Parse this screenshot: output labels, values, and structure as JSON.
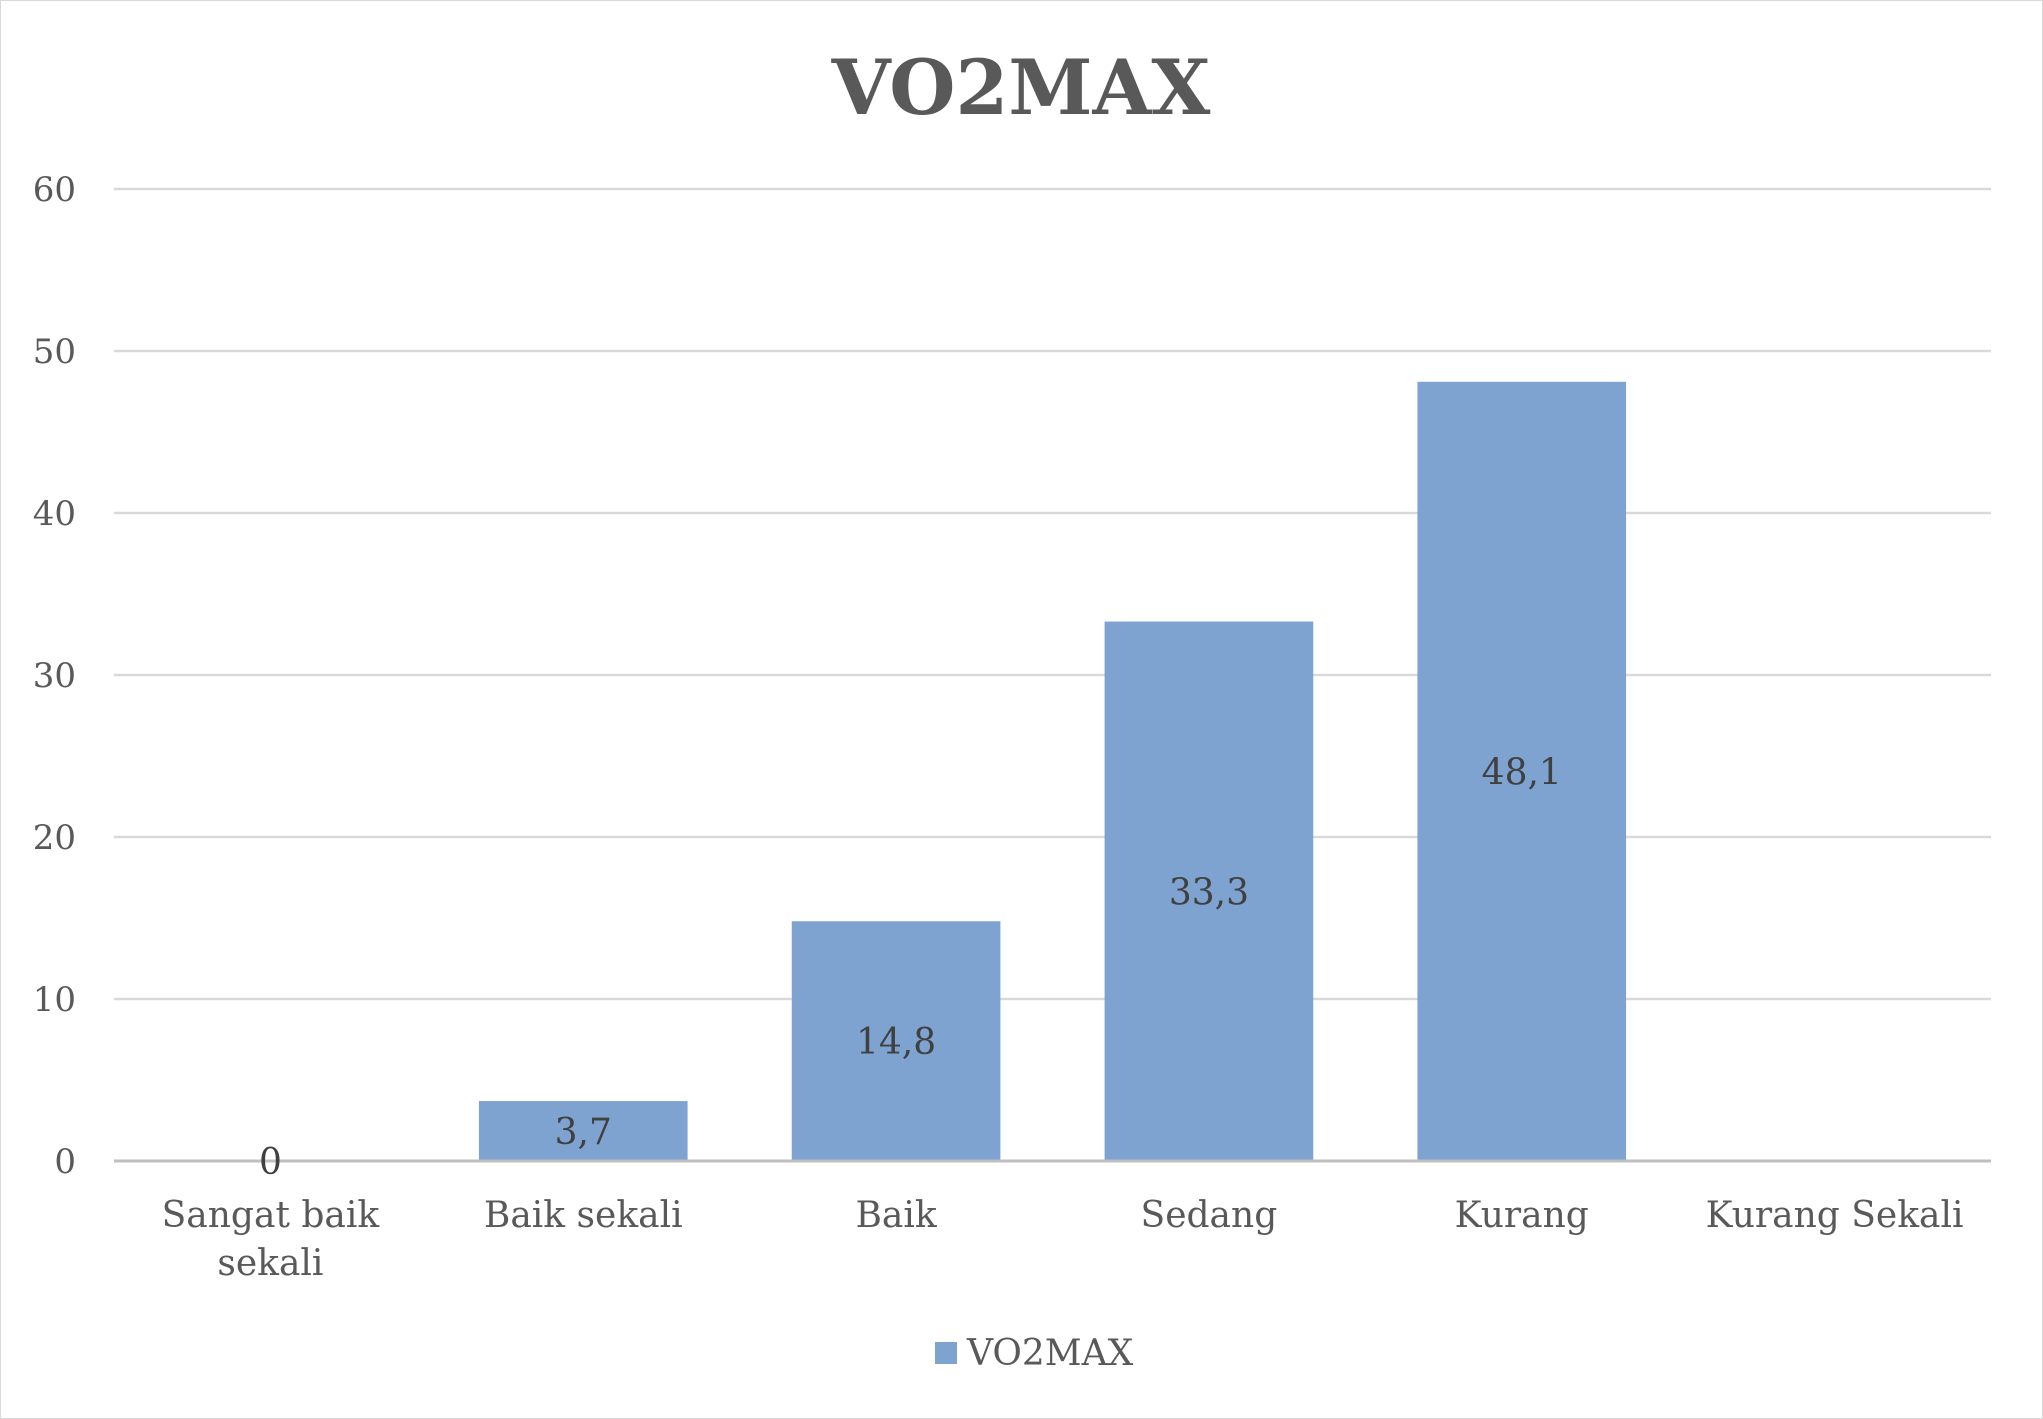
{
  "chart_data": {
    "type": "bar",
    "title": "VO2MAX",
    "categories": [
      "Sangat baik sekali",
      "Baik sekali",
      "Baik",
      "Sedang",
      "Kurang",
      "Kurang Sekali"
    ],
    "category_lines": [
      [
        "Sangat baik",
        "sekali"
      ],
      [
        "Baik sekali"
      ],
      [
        "Baik"
      ],
      [
        "Sedang"
      ],
      [
        "Kurang"
      ],
      [
        "Kurang Sekali"
      ]
    ],
    "series": [
      {
        "name": "VO2MAX",
        "values": [
          0,
          3.7,
          14.8,
          33.3,
          48.1,
          null
        ],
        "data_labels": [
          "0",
          "3,7",
          "14,8",
          "33,3",
          "48,1",
          null
        ]
      }
    ],
    "ylim": [
      0,
      60
    ],
    "yticks": [
      0,
      10,
      20,
      30,
      40,
      50,
      60
    ],
    "xlabel": "",
    "ylabel": "",
    "grid": true,
    "legend": "bottom",
    "colors": {
      "bar": "#7ea3d0",
      "gridline": "#d9d9d9",
      "axis": "#bfbfbf",
      "text": "#595959",
      "title": "#595959",
      "data_label": "#404040"
    }
  }
}
